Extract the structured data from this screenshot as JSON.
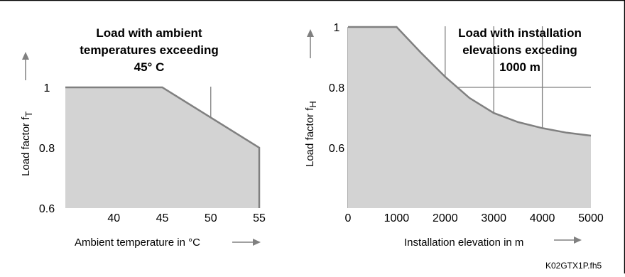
{
  "figure_code": "K02GTX1P.fh5",
  "colors": {
    "fill": "#d3d3d3",
    "line": "#808080",
    "grid": "#808080",
    "text": "#000000"
  },
  "chart_data": [
    {
      "type": "area",
      "title": [
        "Load with ambient",
        "temperatures exceeding",
        "45° C"
      ],
      "xlabel": "Ambient temperature in °C",
      "ylabel_main": "Load factor f",
      "ylabel_sub": "T",
      "x": [
        35,
        45,
        55
      ],
      "y": [
        1.0,
        1.0,
        0.8
      ],
      "xlim": [
        35,
        55
      ],
      "ylim": [
        0.6,
        1.0
      ],
      "x_ticks": [
        40,
        45,
        50,
        55
      ],
      "x_tick_labels": [
        "40",
        "45",
        "50",
        "55"
      ],
      "y_ticks": [
        0.6,
        0.8,
        1.0
      ],
      "y_tick_labels": [
        "0.6",
        "0.8",
        "1"
      ],
      "x_grid": [
        40,
        45,
        50
      ],
      "y_grid": [
        0.8
      ],
      "grid": true
    },
    {
      "type": "area",
      "title": [
        "Load with installation",
        "elevations exceding",
        "1000 m"
      ],
      "xlabel": "Installation elevation in m",
      "ylabel_main": "Load factor f",
      "ylabel_sub": "H",
      "x": [
        0,
        1000,
        1500,
        2000,
        2500,
        3000,
        3500,
        4000,
        4500,
        5000
      ],
      "y": [
        1.0,
        1.0,
        0.915,
        0.835,
        0.765,
        0.715,
        0.685,
        0.665,
        0.65,
        0.64
      ],
      "xlim": [
        0,
        5000
      ],
      "ylim": [
        0.4,
        1.0
      ],
      "x_ticks": [
        0,
        1000,
        2000,
        3000,
        4000,
        5000
      ],
      "x_tick_labels": [
        "0",
        "1000",
        "2000",
        "3000",
        "4000",
        "5000"
      ],
      "y_ticks": [
        0.6,
        0.8,
        1.0
      ],
      "y_tick_labels": [
        "0.6",
        "0.8",
        "1"
      ],
      "x_grid": [
        1000,
        2000,
        3000,
        4000
      ],
      "y_grid": [
        0.6,
        0.8
      ],
      "grid": true
    }
  ]
}
